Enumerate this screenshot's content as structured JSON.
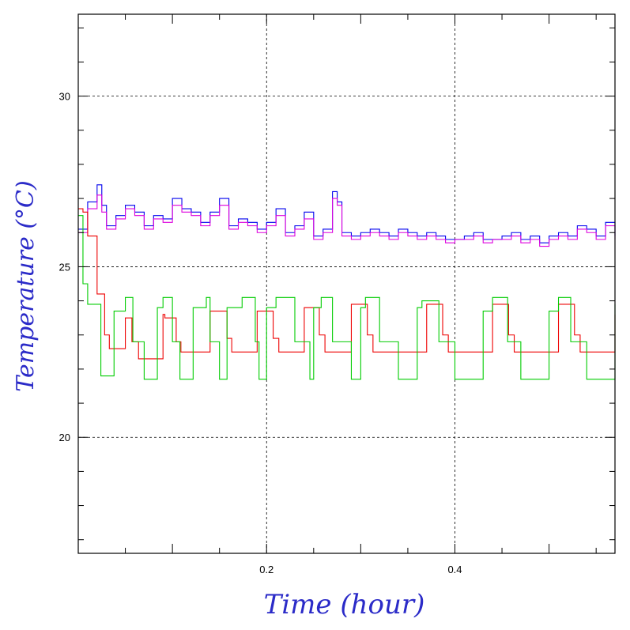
{
  "chart_data": {
    "type": "line",
    "title": "",
    "xlabel": "Time (hour)",
    "ylabel": "Temperature (°C)",
    "xlim": [
      0.0,
      0.57
    ],
    "ylim": [
      16.6,
      32.4
    ],
    "xticks": [
      0.2,
      0.4
    ],
    "xtick_labels": [
      "0.2",
      "0.4"
    ],
    "yticks": [
      20,
      25,
      30
    ],
    "ytick_labels": [
      "20",
      "25",
      "30"
    ],
    "grid": true,
    "legend": "none",
    "series": [
      {
        "color": "#0000ee",
        "x": [
          0.0,
          0.01,
          0.02,
          0.025,
          0.03,
          0.04,
          0.05,
          0.06,
          0.07,
          0.08,
          0.09,
          0.1,
          0.11,
          0.12,
          0.13,
          0.14,
          0.15,
          0.16,
          0.17,
          0.18,
          0.19,
          0.2,
          0.21,
          0.22,
          0.23,
          0.24,
          0.25,
          0.26,
          0.27,
          0.275,
          0.28,
          0.29,
          0.3,
          0.31,
          0.32,
          0.33,
          0.34,
          0.35,
          0.36,
          0.37,
          0.38,
          0.39,
          0.4,
          0.41,
          0.42,
          0.43,
          0.44,
          0.45,
          0.46,
          0.47,
          0.48,
          0.49,
          0.5,
          0.51,
          0.52,
          0.53,
          0.54,
          0.55,
          0.56,
          0.57
        ],
        "y": [
          26.1,
          26.9,
          27.4,
          26.8,
          26.2,
          26.5,
          26.8,
          26.6,
          26.2,
          26.5,
          26.4,
          27.0,
          26.7,
          26.6,
          26.3,
          26.6,
          27.0,
          26.2,
          26.4,
          26.3,
          26.1,
          26.3,
          26.7,
          26.0,
          26.2,
          26.6,
          25.9,
          26.1,
          27.2,
          26.9,
          26.0,
          25.9,
          26.0,
          26.1,
          26.0,
          25.9,
          26.1,
          26.0,
          25.9,
          26.0,
          25.9,
          25.8,
          25.8,
          25.9,
          26.0,
          25.8,
          25.8,
          25.9,
          26.0,
          25.8,
          25.9,
          25.7,
          25.9,
          26.0,
          25.9,
          26.2,
          26.1,
          25.9,
          26.3,
          25.9
        ]
      },
      {
        "color": "#dd00dd",
        "x": [
          0.0,
          0.01,
          0.02,
          0.025,
          0.03,
          0.04,
          0.05,
          0.06,
          0.07,
          0.08,
          0.09,
          0.1,
          0.11,
          0.12,
          0.13,
          0.14,
          0.15,
          0.16,
          0.17,
          0.18,
          0.19,
          0.2,
          0.21,
          0.22,
          0.23,
          0.24,
          0.25,
          0.26,
          0.27,
          0.275,
          0.28,
          0.29,
          0.3,
          0.31,
          0.32,
          0.33,
          0.34,
          0.35,
          0.36,
          0.37,
          0.38,
          0.39,
          0.4,
          0.41,
          0.42,
          0.43,
          0.44,
          0.45,
          0.46,
          0.47,
          0.48,
          0.49,
          0.5,
          0.51,
          0.52,
          0.53,
          0.54,
          0.55,
          0.56,
          0.57
        ],
        "y": [
          26.0,
          26.7,
          27.1,
          26.6,
          26.1,
          26.4,
          26.7,
          26.5,
          26.1,
          26.4,
          26.3,
          26.8,
          26.6,
          26.5,
          26.2,
          26.5,
          26.8,
          26.1,
          26.3,
          26.2,
          26.0,
          26.2,
          26.5,
          25.9,
          26.1,
          26.4,
          25.8,
          26.0,
          27.0,
          26.8,
          25.9,
          25.8,
          25.9,
          26.0,
          25.9,
          25.8,
          26.0,
          25.9,
          25.8,
          25.9,
          25.8,
          25.7,
          25.8,
          25.8,
          25.9,
          25.7,
          25.8,
          25.8,
          25.9,
          25.7,
          25.8,
          25.6,
          25.8,
          25.9,
          25.8,
          26.1,
          26.0,
          25.8,
          26.2,
          25.8
        ]
      },
      {
        "color": "#ee0000",
        "x": [
          0.0,
          0.005,
          0.01,
          0.02,
          0.028,
          0.033,
          0.05,
          0.057,
          0.064,
          0.09,
          0.092,
          0.104,
          0.109,
          0.14,
          0.142,
          0.158,
          0.163,
          0.19,
          0.192,
          0.207,
          0.213,
          0.24,
          0.242,
          0.256,
          0.262,
          0.29,
          0.292,
          0.307,
          0.313,
          0.37,
          0.372,
          0.387,
          0.393,
          0.44,
          0.442,
          0.457,
          0.463,
          0.51,
          0.512,
          0.527,
          0.533,
          0.57
        ],
        "y": [
          26.7,
          26.6,
          25.9,
          24.2,
          23.0,
          22.6,
          23.5,
          22.8,
          22.3,
          23.6,
          23.5,
          22.8,
          22.5,
          23.7,
          23.7,
          22.9,
          22.5,
          23.7,
          23.7,
          22.9,
          22.5,
          23.8,
          23.8,
          23.0,
          22.5,
          23.9,
          23.9,
          23.0,
          22.5,
          23.9,
          23.9,
          23.0,
          22.5,
          23.9,
          23.9,
          23.0,
          22.5,
          23.9,
          23.9,
          23.0,
          22.5,
          23.6
        ]
      },
      {
        "color": "#00cc00",
        "x": [
          0.0,
          0.005,
          0.01,
          0.024,
          0.038,
          0.05,
          0.058,
          0.07,
          0.084,
          0.09,
          0.1,
          0.108,
          0.122,
          0.136,
          0.14,
          0.15,
          0.158,
          0.174,
          0.188,
          0.192,
          0.2,
          0.21,
          0.23,
          0.246,
          0.25,
          0.258,
          0.27,
          0.29,
          0.3,
          0.305,
          0.32,
          0.34,
          0.36,
          0.365,
          0.383,
          0.4,
          0.43,
          0.44,
          0.456,
          0.47,
          0.5,
          0.51,
          0.523,
          0.54,
          0.57
        ],
        "y": [
          26.5,
          24.5,
          23.9,
          21.8,
          23.7,
          24.1,
          22.8,
          21.7,
          23.8,
          24.1,
          22.8,
          21.7,
          23.8,
          24.1,
          22.8,
          21.7,
          23.8,
          24.1,
          22.8,
          21.7,
          23.8,
          24.1,
          22.8,
          21.7,
          23.8,
          24.1,
          22.8,
          21.7,
          23.8,
          24.1,
          22.8,
          21.7,
          23.8,
          24.0,
          22.8,
          21.7,
          23.7,
          24.1,
          22.8,
          21.7,
          23.7,
          24.1,
          22.8,
          21.7,
          23.9
        ]
      }
    ]
  }
}
